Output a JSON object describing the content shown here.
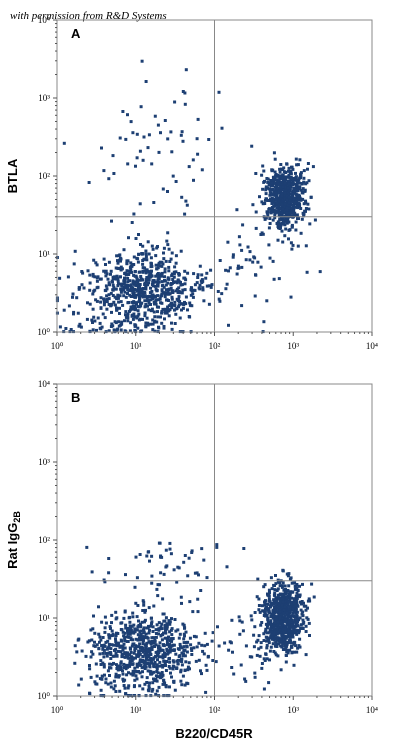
{
  "figure": {
    "credit": "with permission from R&D Systems",
    "point_color": "#1d3f73",
    "axis_color": "#888888"
  },
  "chart_data": [
    {
      "type": "scatter",
      "panel": "A",
      "xlabel": "",
      "ylabel": "BTLA",
      "xscale": "log",
      "yscale": "log",
      "xlim": [
        1,
        10000
      ],
      "ylim": [
        1,
        10000
      ],
      "xticks": [
        "10⁰",
        "10¹",
        "10²",
        "10³",
        "10⁴"
      ],
      "yticks": [
        "10⁰",
        "10¹",
        "10²",
        "10³",
        "10⁴"
      ],
      "quadrant_gate": {
        "x": 100,
        "y": 30
      },
      "clusters": [
        {
          "name": "lower-left",
          "center": [
            12,
            3.5
          ],
          "spread": [
            0.38,
            0.24
          ],
          "count": 700
        },
        {
          "name": "upper-right",
          "center": [
            800,
            55
          ],
          "spread": [
            0.13,
            0.21
          ],
          "count": 650
        },
        {
          "name": "upper-left-scatter",
          "center": [
            25,
            200
          ],
          "spread": [
            0.45,
            0.55
          ],
          "count": 70
        },
        {
          "name": "lower-right-scatter",
          "center": [
            300,
            8
          ],
          "spread": [
            0.25,
            0.3
          ],
          "count": 50
        },
        {
          "name": "bottom-band",
          "center": [
            6,
            1.2
          ],
          "spread": [
            0.4,
            0.08
          ],
          "count": 60
        }
      ],
      "grid": false,
      "legend": "none"
    },
    {
      "type": "scatter",
      "panel": "B",
      "xlabel": "B220/CD45R",
      "ylabel": "Rat IgG2B",
      "xscale": "log",
      "yscale": "log",
      "xlim": [
        1,
        10000
      ],
      "ylim": [
        1,
        10000
      ],
      "xticks": [
        "10⁰",
        "10¹",
        "10²",
        "10³",
        "10⁴"
      ],
      "yticks": [
        "10⁰",
        "10¹",
        "10²",
        "10³",
        "10⁴"
      ],
      "quadrant_gate": {
        "x": 100,
        "y": 30
      },
      "clusters": [
        {
          "name": "lower-left",
          "center": [
            13,
            4
          ],
          "spread": [
            0.36,
            0.23
          ],
          "count": 700
        },
        {
          "name": "lower-right",
          "center": [
            750,
            10
          ],
          "spread": [
            0.13,
            0.24
          ],
          "count": 700
        },
        {
          "name": "upper-left-scatter",
          "center": [
            20,
            50
          ],
          "spread": [
            0.4,
            0.2
          ],
          "count": 55
        },
        {
          "name": "lower-right-scatter",
          "center": [
            300,
            5
          ],
          "spread": [
            0.25,
            0.3
          ],
          "count": 40
        },
        {
          "name": "bottom-band",
          "center": [
            6,
            1.2
          ],
          "spread": [
            0.4,
            0.08
          ],
          "count": 50
        }
      ],
      "grid": false,
      "legend": "none"
    }
  ]
}
